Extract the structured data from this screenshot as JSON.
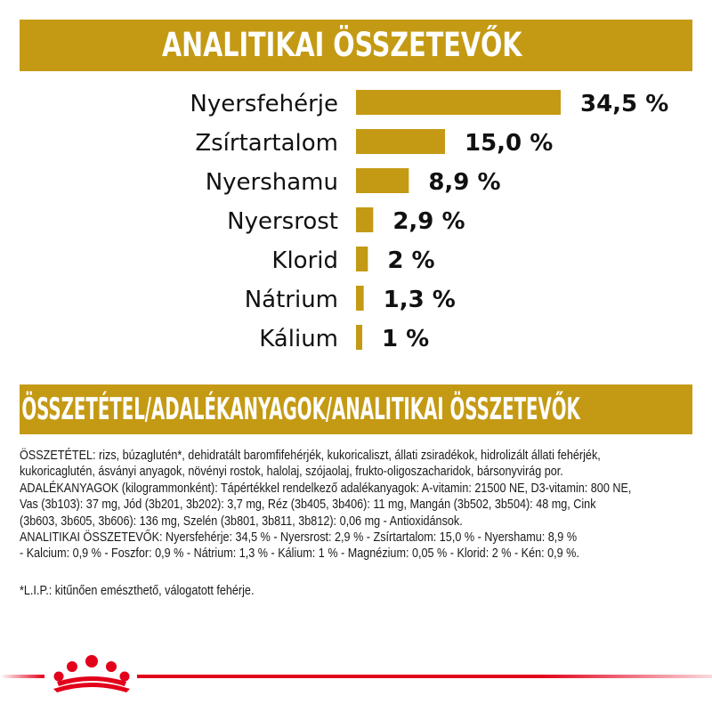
{
  "header": {
    "title": "ANALITIKAI ÖSSZETEVŐK"
  },
  "chart_data": {
    "type": "bar",
    "orientation": "horizontal",
    "categories": [
      "Nyersfehérje",
      "Zsírtartalom",
      "Nyershamu",
      "Nyersrost",
      "Klorid",
      "Nátrium",
      "Kálium"
    ],
    "values": [
      34.5,
      15.0,
      8.9,
      2.9,
      2,
      1.3,
      1
    ],
    "value_labels": [
      "34,5 %",
      "15,0 %",
      "8,9 %",
      "2,9 %",
      "2 %",
      "1,3 %",
      "1 %"
    ],
    "bar_color": "#c49a14",
    "xlim": [
      0,
      34.5
    ],
    "grid": false,
    "legend": "none"
  },
  "section": {
    "title": "ÖSSZETÉTEL/ADALÉKANYAGOK/ANALITIKAI ÖSSZETEVŐK"
  },
  "composition_lines": [
    "ÖSSZETÉTEL: rizs, búzaglutén*, dehidratált baromfifehérjék, kukoricaliszt, állati zsiradékok, hidrolizált állati fehérjék,",
    "kukoricaglutén, ásványi anyagok, növényi rostok, halolaj, szójaolaj, frukto-oligoszacharidok, bársonyvirág por.",
    "ADALÉKANYAGOK (kilogrammonként): Tápértékkel rendelkező adalékanyagok: A-vitamin: 21500 NE, D3-vitamin: 800 NE,",
    "Vas (3b103): 37 mg, Jód (3b201, 3b202): 3,7 mg, Réz (3b405, 3b406): 11 mg, Mangán (3b502, 3b504): 48 mg, Cink",
    "(3b603, 3b605, 3b606): 136 mg, Szelén (3b801, 3b811, 3b812): 0,06 mg - Antioxidánsok.",
    "ANALITIKAI ÖSSZETEVŐK: Nyersfehérje: 34,5 % - Nyersrost: 2,9 % - Zsírtartalom: 15,0 % - Nyershamu: 8,9 %",
    "- Kalcium: 0,9 % - Foszfor: 0,9 % - Nátrium: 1,3 % - Kálium: 1 % - Magnézium: 0,05 % - Klorid: 2 % - Kén: 0,9 %."
  ],
  "footnote": "*L.I.P.: kitűnően emészthető, válogatott fehérje.",
  "colors": {
    "gold": "#c49a14",
    "brand_red": "#e2001a"
  },
  "logo": {
    "icon": "royal-canin-crown-icon"
  }
}
